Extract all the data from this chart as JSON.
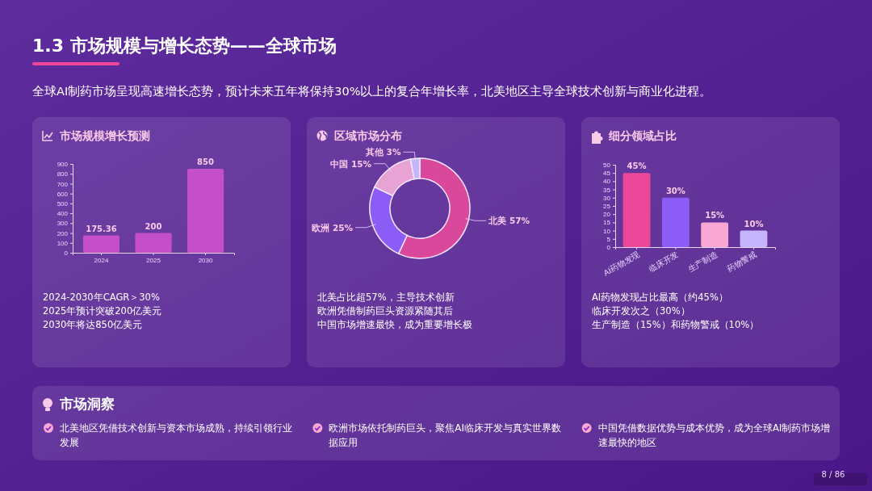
{
  "chart_data": [
    {
      "type": "other",
      "title": "1.3 市场规模与增长态势——全球市场",
      "subtitle": "全球AI制药市场呈现高速增长态势，预计未来五年将保持30%以上的复合年增长率，北美地区主导全球技术创新与商业化进程。",
      "annotations": [
        "8 / 86"
      ]
    },
    {
      "type": "bar",
      "title": "市场规模增长预测",
      "categories": [
        "2024",
        "2025",
        "2030"
      ],
      "values": [
        175.36,
        200,
        850
      ],
      "color": "#c44fc9",
      "ylim": [
        0,
        900
      ],
      "yticks": [
        0,
        100,
        200,
        300,
        400,
        500,
        600,
        700,
        800,
        900
      ],
      "data_labels": true,
      "annotations": [
        "2024-2030年CAGR＞30%",
        "2025年预计突破200亿美元",
        "2030年将达850亿美元"
      ]
    },
    {
      "type": "donut",
      "title": "区域市场分布",
      "categories": [
        "北美",
        "欧洲",
        "中国",
        "其他"
      ],
      "values": [
        57,
        25,
        15,
        3
      ],
      "value_labels": [
        "57%",
        "25%",
        "15%",
        "3%"
      ],
      "colors": [
        "#d9489a",
        "#8b5cf6",
        "#e6a3d3",
        "#c4b5fd"
      ],
      "annotations": [
        "北美占比超57%，主导技术创新",
        "欧洲凭借制药巨头资源紧随其后",
        "中国市场增速最快，成为重要增长极"
      ]
    },
    {
      "type": "bar",
      "title": "细分领域占比",
      "categories": [
        "AI药物发现",
        "临床开发",
        "生产制造",
        "药物警戒"
      ],
      "values": [
        45,
        30,
        15,
        10
      ],
      "value_labels": [
        "45%",
        "30%",
        "15%",
        "10%"
      ],
      "colors": [
        "#ec4899",
        "#8b5cf6",
        "#f9a8d4",
        "#c4b5fd"
      ],
      "ylim": [
        0,
        50
      ],
      "yticks": [
        0,
        5,
        10,
        15,
        20,
        25,
        30,
        35,
        40,
        45,
        50
      ],
      "annotations": [
        "AI药物发现占比最高（约45%）",
        "临床开发次之（30%）",
        "生产制造（15%）和药物警戒（10%）"
      ]
    },
    {
      "type": "other",
      "title": "市场洞察",
      "annotations": [
        "北美地区凭借技术创新与资本市场成熟，持续引领行业发展",
        "欧洲市场依托制药巨头，聚焦AI临床开发与真实世界数据应用",
        "中国凭借数据优势与成本优势，成为全球AI制药市场增速最快的地区"
      ]
    }
  ]
}
